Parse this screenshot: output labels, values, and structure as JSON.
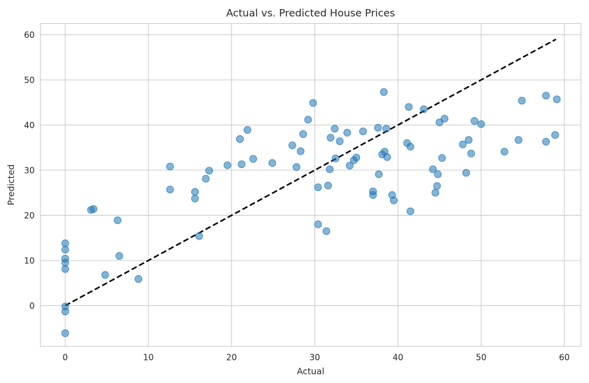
{
  "chart_data": {
    "type": "scatter",
    "title": "Actual vs. Predicted House Prices",
    "xlabel": "Actual",
    "ylabel": "Predicted",
    "xlim": [
      -3,
      62
    ],
    "ylim": [
      -9,
      62.5
    ],
    "xticks": [
      0,
      10,
      20,
      30,
      40,
      50,
      60
    ],
    "yticks": [
      0,
      10,
      20,
      30,
      40,
      50,
      60
    ],
    "grid": true,
    "point_color": "#1f77b4",
    "line_color": "#000000",
    "reference_line": {
      "x": [
        0,
        59
      ],
      "y": [
        0,
        59
      ],
      "style": "dashed"
    },
    "points": [
      [
        0,
        13.8
      ],
      [
        0,
        12.4
      ],
      [
        0,
        10.4
      ],
      [
        0,
        9.5
      ],
      [
        0,
        8.1
      ],
      [
        0,
        -0.2
      ],
      [
        0,
        -1.3
      ],
      [
        0,
        -6.1
      ],
      [
        3.1,
        21.2
      ],
      [
        3.4,
        21.4
      ],
      [
        4.8,
        6.8
      ],
      [
        6.3,
        18.9
      ],
      [
        6.5,
        11.0
      ],
      [
        8.8,
        5.9
      ],
      [
        12.6,
        30.8
      ],
      [
        12.6,
        25.7
      ],
      [
        15.6,
        25.2
      ],
      [
        15.6,
        23.7
      ],
      [
        16.1,
        15.4
      ],
      [
        16.9,
        28.1
      ],
      [
        17.3,
        29.9
      ],
      [
        19.5,
        31.1
      ],
      [
        21.0,
        36.9
      ],
      [
        21.2,
        31.3
      ],
      [
        21.9,
        38.9
      ],
      [
        22.6,
        32.5
      ],
      [
        24.9,
        31.6
      ],
      [
        27.3,
        35.5
      ],
      [
        27.8,
        30.7
      ],
      [
        28.3,
        34.2
      ],
      [
        28.6,
        38.0
      ],
      [
        29.2,
        41.2
      ],
      [
        29.8,
        44.9
      ],
      [
        30.4,
        26.2
      ],
      [
        30.4,
        18.0
      ],
      [
        31.4,
        16.5
      ],
      [
        31.6,
        26.6
      ],
      [
        31.8,
        30.2
      ],
      [
        31.9,
        37.2
      ],
      [
        32.4,
        39.2
      ],
      [
        32.5,
        32.6
      ],
      [
        33.0,
        36.4
      ],
      [
        33.9,
        38.3
      ],
      [
        34.2,
        31.0
      ],
      [
        34.7,
        32.2
      ],
      [
        35.0,
        32.8
      ],
      [
        35.8,
        38.6
      ],
      [
        37.0,
        25.3
      ],
      [
        37.0,
        24.5
      ],
      [
        37.6,
        39.4
      ],
      [
        37.7,
        29.1
      ],
      [
        38.1,
        33.5
      ],
      [
        38.3,
        47.3
      ],
      [
        38.4,
        34.1
      ],
      [
        38.6,
        39.2
      ],
      [
        38.7,
        32.9
      ],
      [
        39.3,
        24.5
      ],
      [
        39.5,
        23.3
      ],
      [
        41.1,
        36.0
      ],
      [
        41.3,
        44.0
      ],
      [
        41.5,
        35.2
      ],
      [
        41.5,
        20.9
      ],
      [
        43.1,
        43.5
      ],
      [
        44.2,
        30.2
      ],
      [
        44.5,
        25.0
      ],
      [
        44.7,
        26.5
      ],
      [
        44.8,
        29.1
      ],
      [
        45.0,
        40.6
      ],
      [
        45.3,
        32.7
      ],
      [
        45.6,
        41.4
      ],
      [
        47.8,
        35.7
      ],
      [
        48.2,
        29.4
      ],
      [
        48.5,
        36.7
      ],
      [
        48.8,
        33.7
      ],
      [
        49.2,
        40.9
      ],
      [
        50.0,
        40.2
      ],
      [
        52.8,
        34.1
      ],
      [
        54.5,
        36.7
      ],
      [
        54.9,
        45.4
      ],
      [
        57.8,
        46.5
      ],
      [
        57.8,
        36.3
      ],
      [
        58.9,
        37.8
      ],
      [
        59.1,
        45.7
      ]
    ]
  }
}
